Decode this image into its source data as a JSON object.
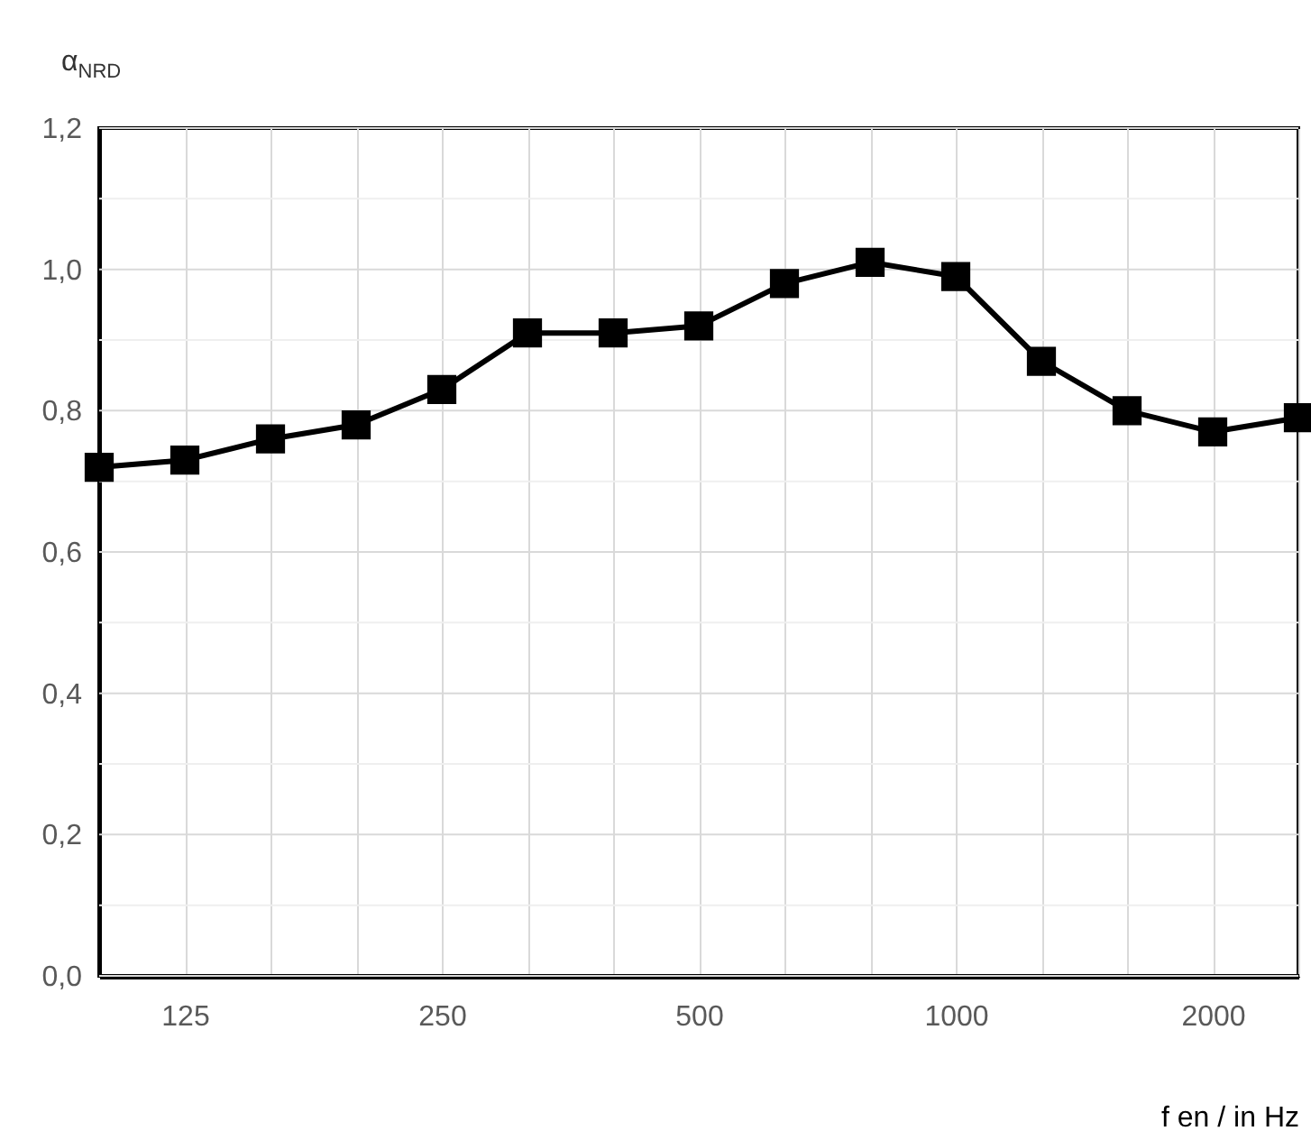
{
  "chart_data": {
    "type": "line",
    "ylabel": "α$_{NRD}$",
    "xlabel": "f en / in Hz",
    "categories": [
      null,
      "125",
      null,
      null,
      "250",
      null,
      null,
      "500",
      null,
      null,
      "1000",
      null,
      null,
      "2000",
      null
    ],
    "series": [
      {
        "color": "#000000",
        "values": [
          0.72,
          0.73,
          0.76,
          0.78,
          0.83,
          0.91,
          0.91,
          0.92,
          0.98,
          1.01,
          0.99,
          0.87,
          0.8,
          0.77,
          0.79
        ]
      }
    ],
    "ylim": [
      0,
      1.2
    ],
    "yticks": [
      {
        "value": 0,
        "label": "0,0"
      },
      {
        "value": 0.1,
        "label": null
      },
      {
        "value": 0.2,
        "label": "0,2"
      },
      {
        "value": 0.3,
        "label": null
      },
      {
        "value": 0.4,
        "label": "0,4"
      },
      {
        "value": 0.5,
        "label": null
      },
      {
        "value": 0.6,
        "label": "0,6"
      },
      {
        "value": 0.7,
        "label": null
      },
      {
        "value": 0.8,
        "label": "0,8"
      },
      {
        "value": 0.9,
        "label": null
      },
      {
        "value": 1.0,
        "label": "1,0"
      },
      {
        "value": 1.1,
        "label": null
      },
      {
        "value": 1.2,
        "label": "1,2"
      }
    ],
    "grid": true,
    "marker": "square",
    "line_style": "solid"
  }
}
